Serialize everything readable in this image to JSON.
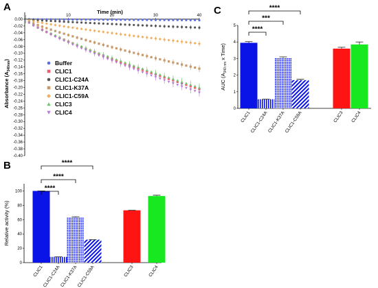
{
  "panels": {
    "a": {
      "letter": "A"
    },
    "b": {
      "letter": "B"
    },
    "c": {
      "letter": "C"
    }
  },
  "colors": {
    "buffer": "#5b6ee1",
    "clic1": "#e8606a",
    "c24a": "#555555",
    "k37a": "#c79a6c",
    "c59a": "#f0b060",
    "clic3": "#6ec86e",
    "clic4": "#b77ad8",
    "bar_clic1": "#0a14e6",
    "bar_hatch": "#0a14e6",
    "bar_clic3": "#ff1414",
    "bar_clic4": "#17e81f"
  },
  "chart_data": [
    {
      "type": "line",
      "panel": "A",
      "xlabel": "Time (min)",
      "ylabel": "Absorbance (A340nm)",
      "ylabel_main": "Absorbance (A",
      "ylabel_sub": "340nm",
      "ylabel_end": ")",
      "xlim": [
        0,
        40
      ],
      "ylim": [
        -0.4,
        0.02
      ],
      "xticks": [
        "10",
        "20",
        "30",
        "40"
      ],
      "yticks": [
        "0.00",
        "-0.02",
        "-0.04",
        "-0.06",
        "-0.08",
        "-0.10",
        "-0.12",
        "-0.14",
        "-0.16",
        "-0.18",
        "-0.20",
        "-0.22",
        "-0.24",
        "-0.26",
        "-0.28",
        "-0.30",
        "-0.32",
        "-0.34",
        "-0.36",
        "-0.38",
        "-0.40"
      ],
      "legend_position": "left",
      "series": [
        {
          "name": "Buffer",
          "marker": "circle",
          "color": "#5b6ee1",
          "end": -0.003,
          "err": 0.004
        },
        {
          "name": "CLIC1",
          "marker": "square",
          "color": "#e8606a",
          "end": -0.205,
          "err": 0.012
        },
        {
          "name": "CLIC1-C24A",
          "marker": "circle",
          "color": "#555555",
          "end": -0.025,
          "err": 0.006
        },
        {
          "name": "CLIC1-K37A",
          "marker": "square",
          "color": "#c79a6c",
          "end": -0.145,
          "err": 0.01
        },
        {
          "name": "CLIC1-C59A",
          "marker": "diamond",
          "color": "#f0b060",
          "end": -0.072,
          "err": 0.008
        },
        {
          "name": "CLIC3",
          "marker": "triangle",
          "color": "#6ec86e",
          "end": -0.2,
          "err": 0.012
        },
        {
          "name": "CLIC4",
          "marker": "triangle-down",
          "color": "#b77ad8",
          "end": -0.215,
          "err": 0.012
        }
      ]
    },
    {
      "type": "bar",
      "panel": "B",
      "ylabel": "Relative activity (%)",
      "ylim": [
        0,
        110
      ],
      "yticks": [
        "0",
        "20",
        "40",
        "60",
        "80",
        "100"
      ],
      "categories": [
        "CLIC1",
        "CLIC1-C24A",
        "CLIC1-K37A",
        "CLIC1-C59A",
        "CLIC3",
        "CLIC4"
      ],
      "values": [
        100,
        8,
        63,
        32,
        73,
        93
      ],
      "errors": [
        0,
        0,
        1,
        0,
        0,
        1
      ],
      "patterns": [
        "solid",
        "vlines",
        "dots",
        "diag",
        "solid",
        "solid"
      ],
      "colors": [
        "#0a14e6",
        "#0a14e6",
        "#0a14e6",
        "#0a14e6",
        "#ff1414",
        "#17e81f"
      ],
      "significance": [
        {
          "label": "****",
          "from": 0,
          "to": 3
        },
        {
          "label": "****",
          "from": 0,
          "to": 2
        },
        {
          "label": "****",
          "from": 0,
          "to": 1
        }
      ]
    },
    {
      "type": "bar",
      "panel": "C",
      "ylabel": "AUC (A340 nm x Time)",
      "ylabel_main": "AUC (A",
      "ylabel_sub": "340 nm",
      "ylabel_end": " x Time)",
      "ylim": [
        0,
        5
      ],
      "yticks": [
        "0",
        "1",
        "2",
        "3",
        "4",
        "5"
      ],
      "categories": [
        "CLIC1",
        "CLIC1-C24A",
        "CLIC1-K37A",
        "CLIC1-C59A",
        "CLIC3",
        "CLIC4"
      ],
      "values": [
        3.95,
        0.55,
        3.05,
        1.7,
        3.6,
        3.85
      ],
      "errors": [
        0.07,
        0.0,
        0.05,
        0.05,
        0.08,
        0.15
      ],
      "patterns": [
        "solid",
        "vlines",
        "dots",
        "diag",
        "solid",
        "solid"
      ],
      "colors": [
        "#0a14e6",
        "#0a14e6",
        "#0a14e6",
        "#0a14e6",
        "#ff1414",
        "#17e81f"
      ],
      "significance": [
        {
          "label": "****",
          "from": 0,
          "to": 3
        },
        {
          "label": "***",
          "from": 0,
          "to": 2
        },
        {
          "label": "****",
          "from": 0,
          "to": 1
        }
      ]
    }
  ]
}
